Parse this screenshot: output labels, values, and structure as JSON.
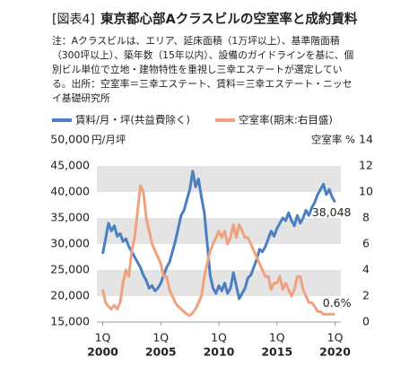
{
  "chart_data": {
    "type": "line",
    "title_prefix": "[図表4]",
    "title": "東京都心部Aクラスビルの空室率と成約賃料",
    "notes": [
      "注：Aクラスビルは、エリア、延床面積（1万坪以上）、基準階面積",
      "（300坪以上）、築年数（15年以内）、設備のガイドラインを基に、個",
      "別ビル単位で立地・建物特性を重視し三幸エステートが選定してい",
      "る。出所：空室率＝三幸エステート、賃料＝三幸エステート・ニッセ",
      "イ基礎研究所"
    ],
    "y_unit": "円/月坪",
    "y2_label": "空室率 %",
    "x": [
      2000,
      2000.25,
      2000.5,
      2000.75,
      2001,
      2001.25,
      2001.5,
      2001.75,
      2002,
      2002.25,
      2002.5,
      2002.75,
      2003,
      2003.25,
      2003.5,
      2003.75,
      2004,
      2004.25,
      2004.5,
      2004.75,
      2005,
      2005.25,
      2005.5,
      2005.75,
      2006,
      2006.25,
      2006.5,
      2006.75,
      2007,
      2007.25,
      2007.5,
      2007.75,
      2008,
      2008.25,
      2008.5,
      2008.75,
      2009,
      2009.25,
      2009.5,
      2009.75,
      2010,
      2010.25,
      2010.5,
      2010.75,
      2011,
      2011.25,
      2011.5,
      2011.75,
      2012,
      2012.25,
      2012.5,
      2012.75,
      2013,
      2013.25,
      2013.5,
      2013.75,
      2014,
      2014.25,
      2014.5,
      2014.75,
      2015,
      2015.25,
      2015.5,
      2015.75,
      2016,
      2016.25,
      2016.5,
      2016.75,
      2017,
      2017.25,
      2017.5,
      2017.75,
      2018,
      2018.25,
      2018.5,
      2018.75,
      2019,
      2019.25,
      2019.5,
      2019.75,
      2020
    ],
    "xlim": [
      1999.5,
      2020.5
    ],
    "xticks": [
      {
        "value": 2000,
        "label": "2000"
      },
      {
        "value": 2005,
        "label": "2005"
      },
      {
        "value": 2010,
        "label": "2010"
      },
      {
        "value": 2015,
        "label": "2015"
      },
      {
        "value": 2020,
        "label": "2020"
      }
    ],
    "xtick_quarters": [
      "1Q",
      "1Q",
      "1Q",
      "1Q",
      "1Q"
    ],
    "ylim": [
      15000,
      50000
    ],
    "yticks": [
      {
        "value": 15000,
        "label": "15,000"
      },
      {
        "value": 20000,
        "label": "20,000"
      },
      {
        "value": 25000,
        "label": "25,000"
      },
      {
        "value": 30000,
        "label": "30,000"
      },
      {
        "value": 35000,
        "label": "35,000"
      },
      {
        "value": 40000,
        "label": "40,000"
      },
      {
        "value": 45000,
        "label": "45,000"
      },
      {
        "value": 50000,
        "label": "50,000"
      }
    ],
    "y2lim": [
      0,
      14
    ],
    "y2ticks": [
      0,
      2,
      4,
      6,
      8,
      10,
      12,
      14
    ],
    "grid_bands": true,
    "series": [
      {
        "name": "賃料/月・坪(共益費除く)",
        "color": "#4a7fc1",
        "axis": "y",
        "values": [
          28100,
          31000,
          34000,
          32500,
          33500,
          31500,
          32000,
          30500,
          31000,
          29500,
          28500,
          27500,
          26500,
          25500,
          24000,
          23000,
          21500,
          22000,
          21000,
          21500,
          22500,
          24000,
          25500,
          26500,
          28500,
          30500,
          33000,
          35500,
          36500,
          38500,
          40500,
          44000,
          41000,
          42500,
          39000,
          36000,
          30000,
          24000,
          21500,
          20500,
          22000,
          21000,
          22500,
          20500,
          21500,
          24500,
          22000,
          19500,
          20500,
          21500,
          23500,
          24000,
          25500,
          27000,
          29000,
          28500,
          29500,
          31000,
          32500,
          31500,
          33000,
          34000,
          35000,
          34500,
          36000,
          34500,
          33500,
          35500,
          34000,
          35000,
          36500,
          35500,
          37000,
          38000,
          39500,
          40500,
          41500,
          39500,
          40500,
          39000,
          38048
        ],
        "value_labels": [
          null,
          null,
          null,
          null,
          null,
          null,
          null,
          null,
          null,
          null,
          null,
          null,
          null,
          null,
          null,
          null,
          null,
          null,
          null,
          null,
          null,
          null,
          null,
          null,
          null,
          null,
          null,
          null,
          null,
          null,
          null,
          null,
          null,
          null,
          null,
          null,
          null,
          null,
          null,
          null,
          null,
          null,
          null,
          null,
          null,
          null,
          null,
          null,
          null,
          null,
          null,
          null,
          null,
          null,
          null,
          null,
          null,
          null,
          null,
          null,
          null,
          null,
          null,
          null,
          null,
          null,
          null,
          null,
          null,
          null,
          null,
          null,
          null,
          null,
          null,
          null,
          null,
          null,
          null,
          null,
          "38,048"
        ]
      },
      {
        "name": "空室率(期末:右目盛)",
        "color": "#f0a27f",
        "axis": "y2",
        "values": [
          2.5,
          1.5,
          1.2,
          1.0,
          1.3,
          1.0,
          1.5,
          3.0,
          4.0,
          3.5,
          5.5,
          6.5,
          8.5,
          10.5,
          10.0,
          8.0,
          7.0,
          6.0,
          5.5,
          5.0,
          4.5,
          3.5,
          3.5,
          2.5,
          2.0,
          1.5,
          1.2,
          1.0,
          0.8,
          0.6,
          0.5,
          0.7,
          1.0,
          1.5,
          2.0,
          3.5,
          4.5,
          5.5,
          6.0,
          6.5,
          7.0,
          6.5,
          7.0,
          6.0,
          6.5,
          7.5,
          6.5,
          7.5,
          7.0,
          6.5,
          6.5,
          6.0,
          5.5,
          5.0,
          4.5,
          4.0,
          3.5,
          3.5,
          2.5,
          3.0,
          3.0,
          3.5,
          2.5,
          3.0,
          2.5,
          2.0,
          2.5,
          3.5,
          3.5,
          2.5,
          2.0,
          1.5,
          1.5,
          1.2,
          0.8,
          0.8,
          0.6,
          0.6,
          0.6,
          0.6,
          0.6
        ],
        "value_labels": [
          null,
          null,
          null,
          null,
          null,
          null,
          null,
          null,
          null,
          null,
          null,
          null,
          null,
          null,
          null,
          null,
          null,
          null,
          null,
          null,
          null,
          null,
          null,
          null,
          null,
          null,
          null,
          null,
          null,
          null,
          null,
          null,
          null,
          null,
          null,
          null,
          null,
          null,
          null,
          null,
          null,
          null,
          null,
          null,
          null,
          null,
          null,
          null,
          null,
          null,
          null,
          null,
          null,
          null,
          null,
          null,
          null,
          null,
          null,
          null,
          null,
          null,
          null,
          null,
          null,
          null,
          null,
          null,
          null,
          null,
          null,
          null,
          null,
          null,
          null,
          null,
          null,
          null,
          null,
          null,
          "0.6%"
        ]
      }
    ]
  }
}
